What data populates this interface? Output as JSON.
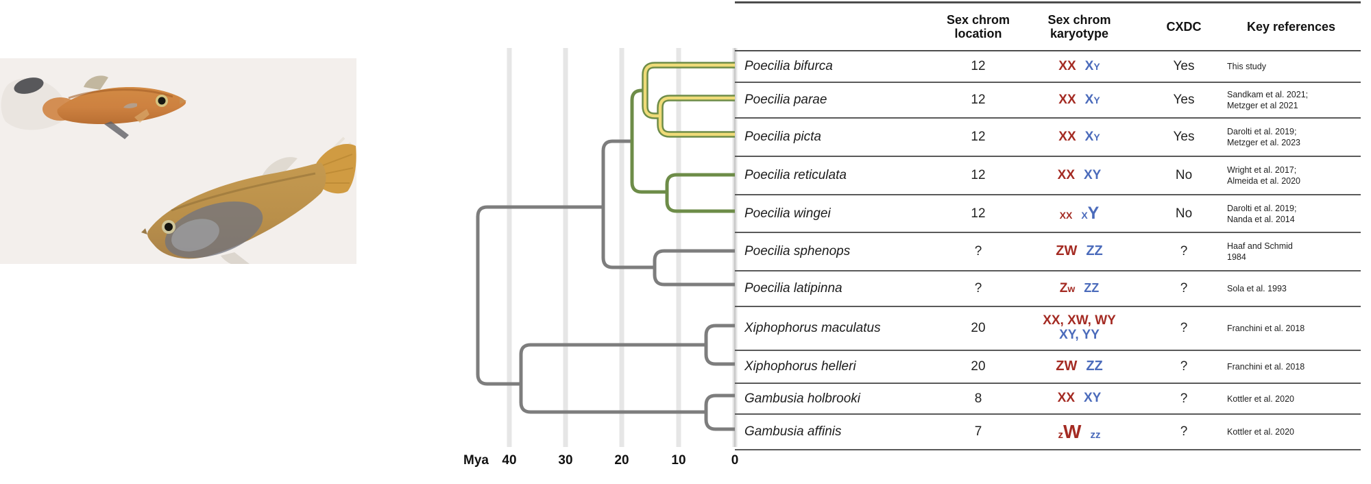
{
  "axis": {
    "unit_label": "Mya",
    "ticks": [
      "40",
      "30",
      "20",
      "10",
      "0"
    ]
  },
  "colors": {
    "female_karyotype": "#a42b23",
    "male_karyotype": "#4b6bbb",
    "clade_picta_yellow": "#efdb78",
    "clade_reticulata_green": "#6d8c48",
    "outgroup_gray": "#7d7d7d",
    "gridline": "#e6e6e6",
    "table_edge": "#c9c9c9"
  },
  "table": {
    "headers": {
      "species": "",
      "location": "Sex chrom\nlocation",
      "karyotype": "Sex chrom\nkaryotype",
      "cxdc": "CXDC",
      "references": "Key references"
    },
    "rows": [
      {
        "species": "Poecilia bifurca",
        "location": "12",
        "kf": [
          [
            "XX",
            1
          ]
        ],
        "km": [
          [
            "X",
            1
          ],
          [
            "Y",
            0.72
          ]
        ],
        "cxdc": "Yes",
        "refs": [
          "This study"
        ]
      },
      {
        "species": "Poecilia parae",
        "location": "12",
        "kf": [
          [
            "XX",
            1
          ]
        ],
        "km": [
          [
            "X",
            1
          ],
          [
            "Y",
            0.72
          ]
        ],
        "cxdc": "Yes",
        "refs": [
          "Sandkam et al. 2021;",
          "Metzger et al 2021"
        ]
      },
      {
        "species": "Poecilia picta",
        "location": "12",
        "kf": [
          [
            "XX",
            1
          ]
        ],
        "km": [
          [
            "X",
            1
          ],
          [
            "Y",
            0.72
          ]
        ],
        "cxdc": "Yes",
        "refs": [
          "Darolti et al. 2019;",
          "Metzger et al. 2023"
        ]
      },
      {
        "species": "Poecilia reticulata",
        "location": "12",
        "kf": [
          [
            "XX",
            1
          ]
        ],
        "km": [
          [
            "XY",
            1
          ]
        ],
        "cxdc": "No",
        "refs": [
          "Wright et al. 2017;",
          "Almeida et al. 2020"
        ]
      },
      {
        "species": "Poecilia wingei",
        "location": "12",
        "kf": [
          [
            "XX",
            0.76
          ]
        ],
        "km": [
          [
            "X",
            0.76
          ],
          [
            "Y",
            1.32
          ]
        ],
        "cxdc": "No",
        "refs": [
          "Darolti et al. 2019;",
          "Nanda et al. 2014"
        ]
      },
      {
        "species": "Poecilia sphenops",
        "location": "?",
        "kf": [
          [
            "ZW",
            1.05
          ]
        ],
        "km": [
          [
            "ZZ",
            1.05
          ]
        ],
        "cxdc": "?",
        "refs": [
          "Haaf and Schmid",
          "1984"
        ]
      },
      {
        "species": "Poecilia latipinna",
        "location": "?",
        "kf": [
          [
            "Z",
            1
          ],
          [
            "w",
            0.72
          ]
        ],
        "km": [
          [
            "ZZ",
            0.95
          ]
        ],
        "cxdc": "?",
        "refs": [
          "Sola et al. 1993"
        ]
      },
      {
        "species": "Xiphophorus maculatus",
        "location": "20",
        "kf": [
          [
            "XX, XW, WY",
            1
          ]
        ],
        "km": [
          [
            "XY, YY",
            1
          ]
        ],
        "two_line": true,
        "cxdc": "?",
        "refs": [
          "Franchini et al. 2018"
        ]
      },
      {
        "species": "Xiphophorus helleri",
        "location": "20",
        "kf": [
          [
            "ZW",
            1.05
          ]
        ],
        "km": [
          [
            "ZZ",
            1.05
          ]
        ],
        "cxdc": "?",
        "refs": [
          "Franchini et al. 2018"
        ]
      },
      {
        "species": "Gambusia holbrooki",
        "location": "8",
        "kf": [
          [
            "XX",
            1
          ]
        ],
        "km": [
          [
            "XY",
            1
          ]
        ],
        "cxdc": "?",
        "refs": [
          "Kottler et al. 2020"
        ]
      },
      {
        "species": "Gambusia affinis",
        "location": "7",
        "kf": [
          [
            "z",
            0.8
          ],
          [
            "W",
            1.45
          ]
        ],
        "km": [
          [
            "zz",
            0.8
          ]
        ],
        "cxdc": "?",
        "refs": [
          "Kottler et al. 2020"
        ]
      }
    ]
  }
}
